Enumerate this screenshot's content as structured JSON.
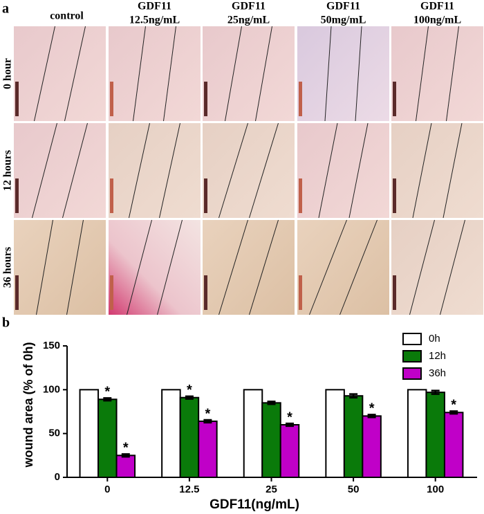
{
  "panel_a": {
    "letter": "a",
    "columns": [
      [
        "control"
      ],
      [
        "GDF11",
        "12.5ng/mL"
      ],
      [
        "GDF11",
        "25ng/mL"
      ],
      [
        "GDF11",
        "50mg/mL"
      ],
      [
        "GDF11",
        "100ng/mL"
      ]
    ],
    "rows": [
      "0 hour",
      "12 hours",
      "36 hours"
    ]
  },
  "chart_data": {
    "type": "bar",
    "letter": "b",
    "categories": [
      "0",
      "12.5",
      "25",
      "50",
      "100"
    ],
    "series": [
      {
        "name": "0h",
        "color": "#ffffff",
        "values": [
          100,
          100,
          100,
          100,
          100
        ]
      },
      {
        "name": "12h",
        "color": "#0a7a0a",
        "values": [
          89,
          91,
          85,
          93,
          97
        ],
        "errors": [
          1.5,
          1.5,
          1.5,
          2,
          2
        ],
        "significance": [
          "*",
          "*",
          null,
          null,
          null
        ]
      },
      {
        "name": "36h",
        "color": "#c000c8",
        "values": [
          25,
          64,
          60,
          70,
          74
        ],
        "errors": [
          1.5,
          1.5,
          1.5,
          1.5,
          1.5
        ],
        "significance": [
          "*",
          "*",
          "*",
          "*",
          "*"
        ]
      }
    ],
    "ylabel": "wound area (% of 0h)",
    "xlabel": "GDF11(ng/mL)",
    "ylim": [
      0,
      150
    ],
    "yticks": [
      0,
      50,
      100,
      150
    ],
    "legend": "top-right"
  }
}
